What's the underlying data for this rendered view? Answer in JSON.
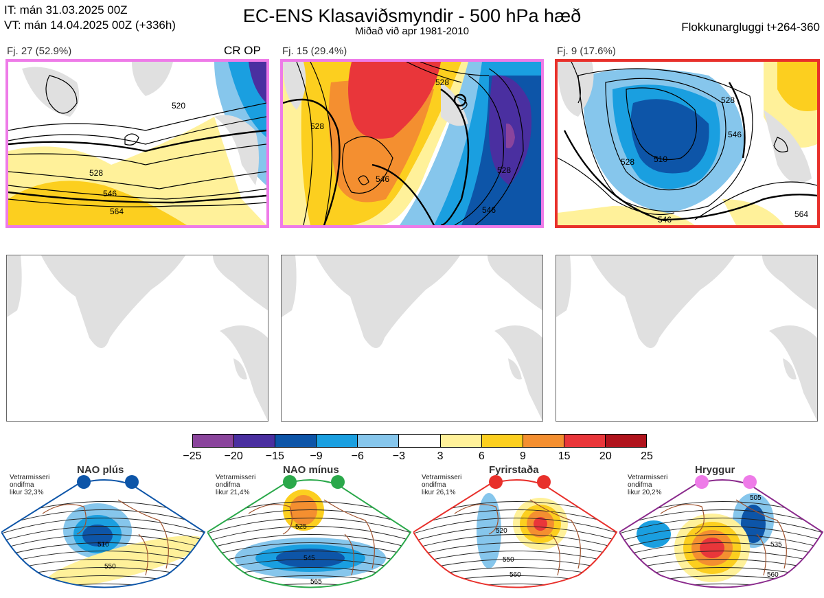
{
  "header": {
    "it_line": "IT: mán 31.03.2025 00Z",
    "vt_line": "VT: mán 14.04.2025 00Z  (+336h)",
    "title": "EC-ENS Klasaviðsmyndir - 500 hPa hæð",
    "subtitle": "Miðað við apr 1981-2010",
    "window": "Flokkunargluggi t+264-360"
  },
  "panels": [
    {
      "label": "Fj. 27 (52.9%)",
      "tag": "CR OP",
      "border": "#ee7be8",
      "contours": [
        "520",
        "528",
        "546",
        "564"
      ]
    },
    {
      "label": "Fj. 15 (29.4%)",
      "tag": "",
      "border": "#ee7be8",
      "contours": [
        "528",
        "528",
        "546",
        "528",
        "546"
      ]
    },
    {
      "label": "Fj. 9 (17.6%)",
      "tag": "",
      "border": "#e8302b",
      "contours": [
        "528",
        "510",
        "528",
        "546",
        "564",
        "546"
      ]
    }
  ],
  "colorbar": {
    "ticks": [
      "−25",
      "−20",
      "−15",
      "−9",
      "−6",
      "−3",
      "3",
      "6",
      "9",
      "15",
      "20",
      "25"
    ],
    "colors": [
      "#8a449c",
      "#4a2fa0",
      "#0d55a8",
      "#1a9fe0",
      "#86c6ec",
      "#ffffff",
      "#fff19a",
      "#fccf1f",
      "#f48f30",
      "#e9363a",
      "#b0131c"
    ]
  },
  "regimes": [
    {
      "title": "NAO plús",
      "note_l1": "Vetrarmisseri",
      "note_l2": "ondifma",
      "note_l3": "likur 32,3%",
      "color": "#0d55a8",
      "border": "#0d55a8",
      "labels": [
        "510",
        "550"
      ]
    },
    {
      "title": "NAO mínus",
      "note_l1": "Vetrarmisseri",
      "note_l2": "ondifma",
      "note_l3": "likur 21,4%",
      "color": "#2aa84a",
      "border": "#2aa84a",
      "labels": [
        "525",
        "545",
        "565"
      ]
    },
    {
      "title": "Fyrirstaða",
      "note_l1": "Vetrarmisseri",
      "note_l2": "ondifma",
      "note_l3": "likur 26,1%",
      "color": "#e8302b",
      "border": "#e8302b",
      "labels": [
        "520",
        "550",
        "560"
      ]
    },
    {
      "title": "Hryggur",
      "note_l1": "Vetrarmisseri",
      "note_l2": "ondifma",
      "note_l3": "likur 20,2%",
      "color": "#ee7be8",
      "border": "#8a2a8c",
      "labels": [
        "505",
        "535",
        "560"
      ]
    }
  ]
}
